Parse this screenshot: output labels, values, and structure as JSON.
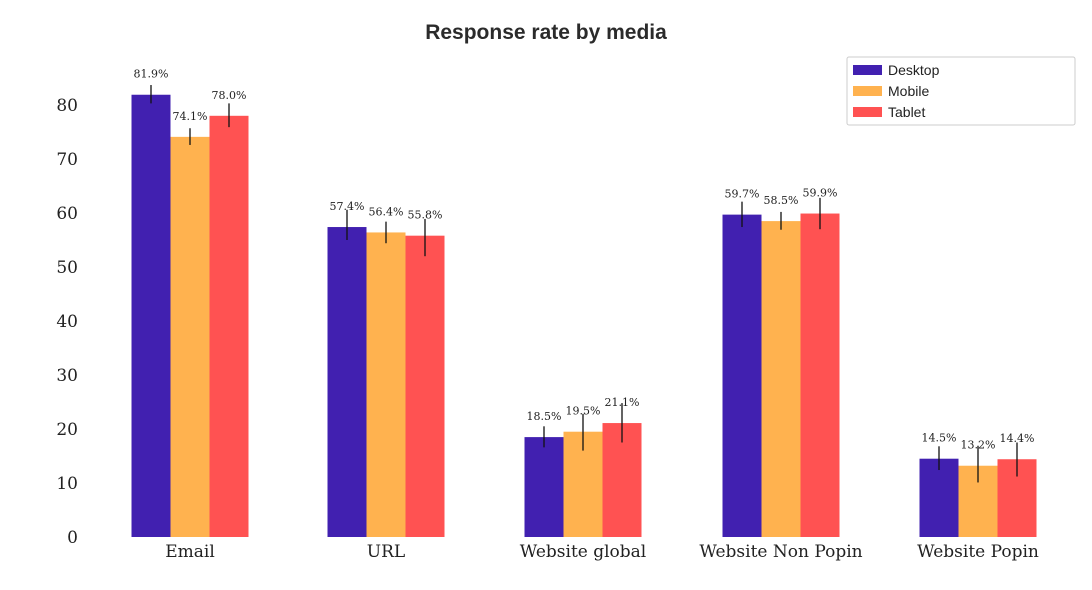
{
  "chart_data": {
    "type": "bar",
    "title": "Response rate by media",
    "xlabel": "",
    "ylabel": "",
    "ylim": [
      0,
      85
    ],
    "yticks": [
      0,
      10,
      20,
      30,
      40,
      50,
      60,
      70,
      80
    ],
    "grid": false,
    "legend_position": "top-right",
    "categories": [
      "Email",
      "URL",
      "Website global",
      "Website Non Popin",
      "Website Popin"
    ],
    "series": [
      {
        "name": "Desktop",
        "color": "#4120b0",
        "values": [
          81.9,
          57.4,
          18.5,
          59.7,
          14.5
        ],
        "labels": [
          "81.9%",
          "57.4%",
          "18.5%",
          "59.7%",
          "14.5%"
        ],
        "error": [
          [
            80.3,
            83.7
          ],
          [
            55.0,
            60.6
          ],
          [
            16.6,
            20.5
          ],
          [
            57.4,
            62.1
          ],
          [
            12.4,
            16.8
          ]
        ]
      },
      {
        "name": "Mobile",
        "color": "#ffb24f",
        "values": [
          74.1,
          56.4,
          19.5,
          58.5,
          13.2
        ],
        "labels": [
          "74.1%",
          "56.4%",
          "19.5%",
          "58.5%",
          "13.2%"
        ],
        "error": [
          [
            72.6,
            75.7
          ],
          [
            54.4,
            58.4
          ],
          [
            16.0,
            22.8
          ],
          [
            56.9,
            60.2
          ],
          [
            10.1,
            16.9
          ]
        ]
      },
      {
        "name": "Tablet",
        "color": "#ff5252",
        "values": [
          78.0,
          55.8,
          21.1,
          59.9,
          14.4
        ],
        "labels": [
          "78.0%",
          "55.8%",
          "21.1%",
          "59.9%",
          "14.4%"
        ],
        "error": [
          [
            75.9,
            80.3
          ],
          [
            52.0,
            58.9
          ],
          [
            17.5,
            24.8
          ],
          [
            57.0,
            62.8
          ],
          [
            11.2,
            17.5
          ]
        ]
      }
    ]
  }
}
